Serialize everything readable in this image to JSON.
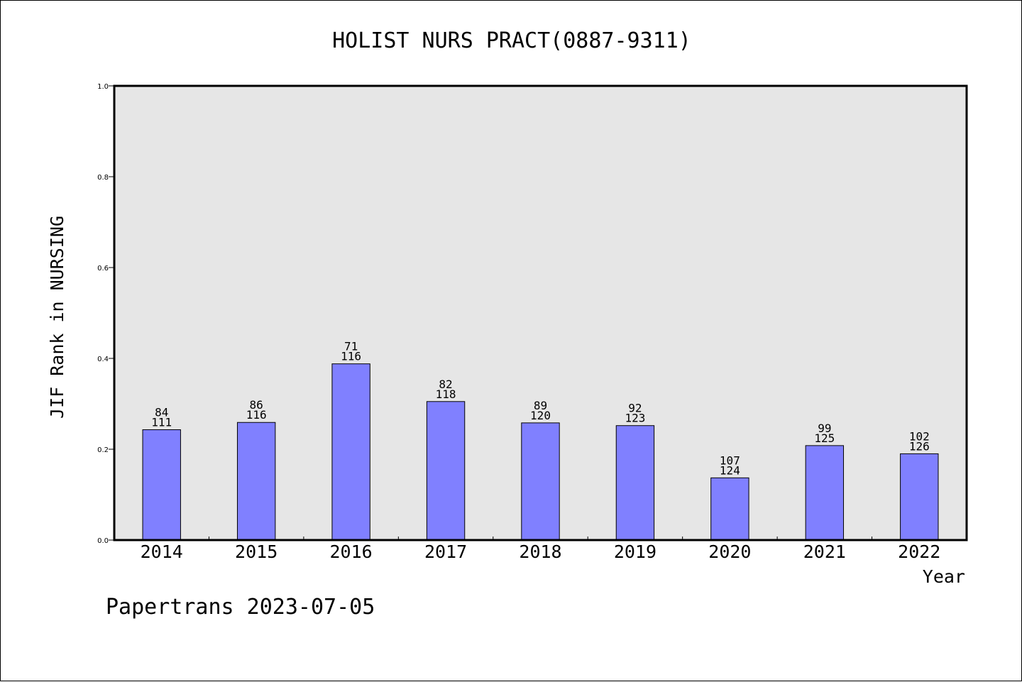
{
  "chart_data": {
    "type": "bar",
    "title": "HOLIST NURS PRACT(0887-9311)",
    "xlabel": "Year",
    "ylabel": "JIF Rank in NURSING",
    "ylim": [
      0.0,
      1.0
    ],
    "yticks": [
      "0.0",
      "0.2",
      "0.4",
      "0.6",
      "0.8",
      "1.0"
    ],
    "categories": [
      "2014",
      "2015",
      "2016",
      "2017",
      "2018",
      "2019",
      "2020",
      "2021",
      "2022"
    ],
    "values": [
      0.243,
      0.259,
      0.388,
      0.305,
      0.258,
      0.252,
      0.137,
      0.208,
      0.19
    ],
    "bar_labels": [
      {
        "rank": "84",
        "total": "111"
      },
      {
        "rank": "86",
        "total": "116"
      },
      {
        "rank": "71",
        "total": "116"
      },
      {
        "rank": "82",
        "total": "118"
      },
      {
        "rank": "89",
        "total": "120"
      },
      {
        "rank": "92",
        "total": "123"
      },
      {
        "rank": "107",
        "total": "124"
      },
      {
        "rank": "99",
        "total": "125"
      },
      {
        "rank": "102",
        "total": "126"
      }
    ],
    "grid": false,
    "legend": "none",
    "colors": {
      "bar_fill": "#8080ff",
      "plot_background": "#e6e6e6",
      "edge": "#000000"
    }
  },
  "footer": {
    "source": "Papertrans 2023-07-05"
  }
}
